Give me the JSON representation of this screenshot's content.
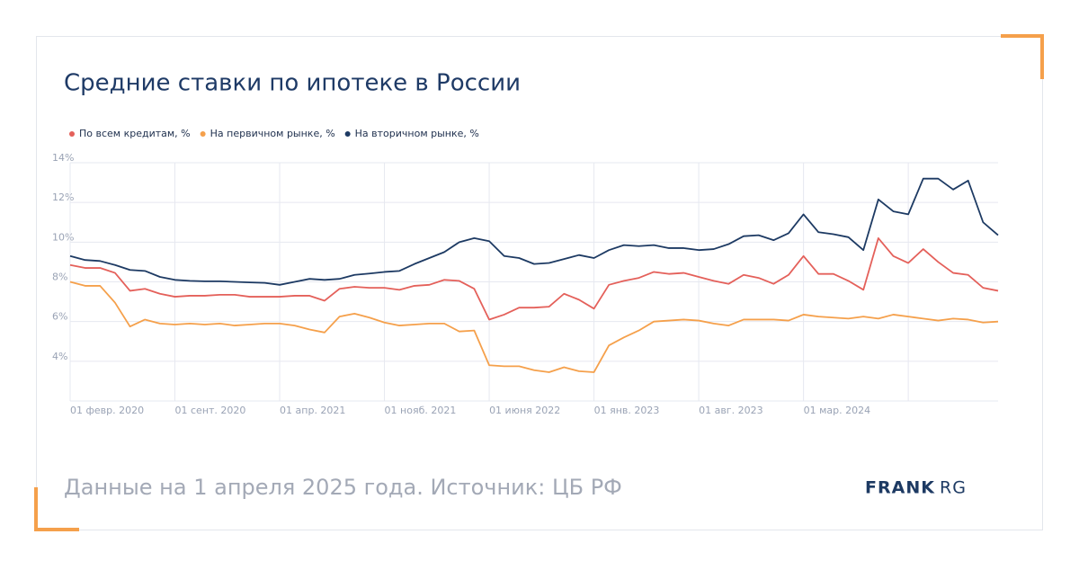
{
  "chart_data": {
    "type": "line",
    "title": "Средние ставки по ипотеке в России",
    "categories": [
      "01 февр. 2020",
      null,
      null,
      null,
      null,
      null,
      null,
      "01 сент. 2020",
      null,
      null,
      null,
      null,
      null,
      null,
      "01 апр. 2021",
      null,
      null,
      null,
      null,
      null,
      null,
      "01 нояб. 2021",
      null,
      null,
      null,
      null,
      null,
      null,
      "01 июня 2022",
      null,
      null,
      null,
      null,
      null,
      null,
      "01 янв. 2023",
      null,
      null,
      null,
      null,
      null,
      null,
      "01 авг. 2023",
      null,
      null,
      null,
      null,
      null,
      null,
      "01 мар. 2024",
      null,
      null,
      null,
      null,
      null,
      null,
      null,
      null,
      null,
      null,
      null,
      null,
      null
    ],
    "series": [
      {
        "name": "По всем кредитам, %",
        "color": "#e4605a",
        "values": [
          8.85,
          8.7,
          8.7,
          8.45,
          7.55,
          7.65,
          7.4,
          7.25,
          7.3,
          7.3,
          7.35,
          7.35,
          7.25,
          7.25,
          7.25,
          7.3,
          7.3,
          7.05,
          7.65,
          7.75,
          7.7,
          7.7,
          7.6,
          7.8,
          7.85,
          8.1,
          8.05,
          7.65,
          6.1,
          6.35,
          6.7,
          6.7,
          6.75,
          7.4,
          7.1,
          6.65,
          7.85,
          8.05,
          8.2,
          8.5,
          8.4,
          8.45,
          8.25,
          8.05,
          7.9,
          8.35,
          8.2,
          7.9,
          8.35,
          9.3,
          8.4,
          8.4,
          8.05,
          7.6,
          10.2,
          9.3,
          8.95,
          9.65,
          9.0,
          8.45,
          8.35,
          7.7,
          7.55
        ]
      },
      {
        "name": "На первичном рынке, %",
        "color": "#f5a04b",
        "values": [
          8.0,
          7.8,
          7.8,
          6.95,
          5.75,
          6.1,
          5.9,
          5.85,
          5.9,
          5.85,
          5.9,
          5.8,
          5.85,
          5.9,
          5.9,
          5.8,
          5.6,
          5.45,
          6.25,
          6.4,
          6.2,
          5.95,
          5.8,
          5.85,
          5.9,
          5.9,
          5.5,
          5.55,
          3.8,
          3.75,
          3.75,
          3.55,
          3.45,
          3.7,
          3.5,
          3.45,
          4.8,
          5.2,
          5.55,
          6.0,
          6.05,
          6.1,
          6.05,
          5.9,
          5.8,
          6.1,
          6.1,
          6.1,
          6.05,
          6.35,
          6.25,
          6.2,
          6.15,
          6.25,
          6.15,
          6.35,
          6.25,
          6.15,
          6.05,
          6.15,
          6.1,
          5.95,
          6.0
        ]
      },
      {
        "name": "На вторичном рынке, %",
        "color": "#1d3a63",
        "values": [
          9.3,
          9.1,
          9.05,
          8.85,
          8.6,
          8.55,
          8.25,
          8.1,
          8.05,
          8.03,
          8.03,
          8.0,
          7.97,
          7.95,
          7.85,
          8.0,
          8.15,
          8.1,
          8.15,
          8.35,
          8.42,
          8.5,
          8.55,
          8.9,
          9.2,
          9.5,
          10.0,
          10.2,
          10.05,
          9.3,
          9.2,
          8.9,
          8.95,
          9.15,
          9.35,
          9.2,
          9.6,
          9.85,
          9.8,
          9.85,
          9.7,
          9.7,
          9.6,
          9.65,
          9.9,
          10.3,
          10.35,
          10.1,
          10.45,
          11.4,
          10.5,
          10.4,
          10.25,
          9.6,
          12.15,
          11.55,
          11.4,
          13.2,
          13.2,
          12.65,
          13.1,
          11.0,
          10.35
        ]
      }
    ],
    "ylim": [
      2,
      14
    ],
    "yticks": [
      {
        "value": 4,
        "label": "4%"
      },
      {
        "value": 6,
        "label": "6%"
      },
      {
        "value": 8,
        "label": "8%"
      },
      {
        "value": 10,
        "label": "10%"
      },
      {
        "value": 12,
        "label": "12%"
      },
      {
        "value": 14,
        "label": "14%"
      }
    ],
    "grid": true
  },
  "footer": {
    "note": "Данные на 1 апреля 2025 года. Источник: ЦБ РФ",
    "logo_main": "FRANK",
    "logo_sub": "RG"
  }
}
